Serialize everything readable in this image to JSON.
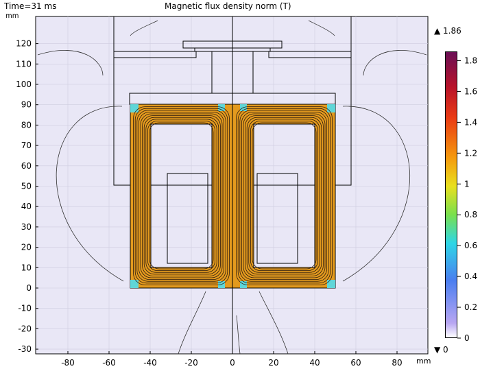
{
  "header": {
    "time_label": "Time=31 ms",
    "plot_title": "Magnetic flux density norm (T)"
  },
  "axes": {
    "y_unit": "mm",
    "x_unit": "mm",
    "x_ticks": [
      -80,
      -60,
      -40,
      -20,
      0,
      20,
      40,
      60,
      80
    ],
    "y_ticks": [
      120,
      110,
      100,
      90,
      80,
      70,
      60,
      50,
      40,
      30,
      20,
      10,
      0,
      -10,
      -20,
      -30
    ],
    "x_range": [
      -95,
      95
    ],
    "y_range": [
      -33,
      130
    ]
  },
  "colorbar": {
    "max_label": "▲ 1.86",
    "min_label": "▼ 0",
    "ticks": [
      "1.8",
      "1.6",
      "1.4",
      "1.2",
      "1",
      "0.8",
      "0.6",
      "0.4",
      "0.2",
      "0"
    ]
  },
  "colors": {
    "background_field": "#e8e6f6",
    "core_high": "#d9801c",
    "core_mid": "#f0a91e",
    "flux_line": "#1a1a1a"
  }
}
